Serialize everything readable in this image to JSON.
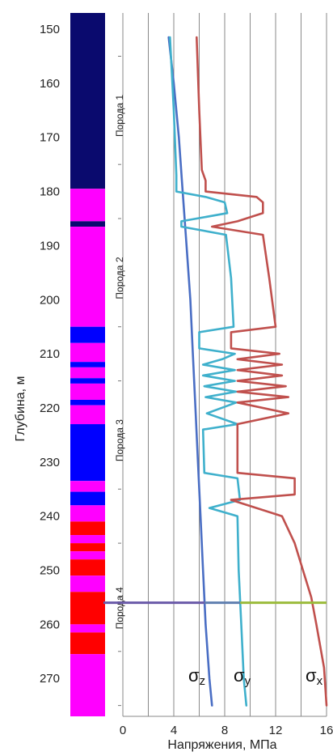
{
  "chart_data": {
    "type": "line",
    "title": "",
    "xlabel": "Напряжения, МПа",
    "ylabel": "Глубина, м",
    "xlim": [
      0,
      16
    ],
    "ylim": [
      147,
      277
    ],
    "x_ticks": [
      "0",
      "4",
      "8",
      "12",
      "16"
    ],
    "y_ticks": [
      "150",
      "160",
      "170",
      "180",
      "190",
      "200",
      "210",
      "220",
      "230",
      "240",
      "250",
      "260",
      "270"
    ],
    "zones": [
      {
        "label": "Порода 1",
        "center_depth": 166
      },
      {
        "label": "Порода 2",
        "center_depth": 196
      },
      {
        "label": "Порода 3",
        "center_depth": 226
      },
      {
        "label": "Порода 4",
        "center_depth": 257
      }
    ],
    "lithology_column": [
      {
        "from": 147,
        "to": 179.5,
        "color": "#0a0a6e"
      },
      {
        "from": 179.5,
        "to": 185.5,
        "color": "#ff00ff"
      },
      {
        "from": 185.5,
        "to": 186.5,
        "color": "#0a0a6e"
      },
      {
        "from": 186.5,
        "to": 205,
        "color": "#ff00ff"
      },
      {
        "from": 205,
        "to": 208,
        "color": "#0000ff"
      },
      {
        "from": 208,
        "to": 211.5,
        "color": "#ff00ff"
      },
      {
        "from": 211.5,
        "to": 212.5,
        "color": "#0000ff"
      },
      {
        "from": 212.5,
        "to": 214.5,
        "color": "#ff00ff"
      },
      {
        "from": 214.5,
        "to": 215.5,
        "color": "#0000ff"
      },
      {
        "from": 215.5,
        "to": 218.5,
        "color": "#ff00ff"
      },
      {
        "from": 218.5,
        "to": 219.5,
        "color": "#0000ff"
      },
      {
        "from": 219.5,
        "to": 223,
        "color": "#ff00ff"
      },
      {
        "from": 223,
        "to": 233.5,
        "color": "#0000ff"
      },
      {
        "from": 233.5,
        "to": 235.5,
        "color": "#ff00ff"
      },
      {
        "from": 235.5,
        "to": 238,
        "color": "#0000ff"
      },
      {
        "from": 238,
        "to": 241,
        "color": "#ff00ff"
      },
      {
        "from": 241,
        "to": 243.5,
        "color": "#ff0000"
      },
      {
        "from": 243.5,
        "to": 245,
        "color": "#ff00ff"
      },
      {
        "from": 245,
        "to": 246.5,
        "color": "#ff0000"
      },
      {
        "from": 246.5,
        "to": 248,
        "color": "#ff00ff"
      },
      {
        "from": 248,
        "to": 251,
        "color": "#ff0000"
      },
      {
        "from": 251,
        "to": 254,
        "color": "#ff00ff"
      },
      {
        "from": 254,
        "to": 260,
        "color": "#ff0000"
      },
      {
        "from": 260,
        "to": 261.5,
        "color": "#ff00ff"
      },
      {
        "from": 261.5,
        "to": 265.5,
        "color": "#ff0000"
      },
      {
        "from": 265.5,
        "to": 277,
        "color": "#ff00ff"
      }
    ],
    "series": [
      {
        "name": "σz",
        "color": "#4a6ec4",
        "points": [
          [
            3.6,
            151.5
          ],
          [
            4.0,
            160
          ],
          [
            4.4,
            170
          ],
          [
            4.7,
            180
          ],
          [
            5.0,
            190
          ],
          [
            5.3,
            200
          ],
          [
            5.5,
            210
          ],
          [
            5.7,
            220
          ],
          [
            5.9,
            230
          ],
          [
            6.1,
            240
          ],
          [
            6.3,
            250
          ],
          [
            6.5,
            260
          ],
          [
            6.8,
            270
          ],
          [
            7.0,
            275
          ]
        ]
      },
      {
        "name": "σy",
        "color": "#3fb0cc",
        "points": [
          [
            3.7,
            151.5
          ],
          [
            4.0,
            165
          ],
          [
            4.2,
            177
          ],
          [
            4.2,
            180
          ],
          [
            6.5,
            181
          ],
          [
            8.0,
            182
          ],
          [
            8.2,
            184
          ],
          [
            4.6,
            185.5
          ],
          [
            4.6,
            186.5
          ],
          [
            8.1,
            188
          ],
          [
            8.5,
            196
          ],
          [
            8.7,
            205
          ],
          [
            6.0,
            206
          ],
          [
            6.0,
            209
          ],
          [
            8.8,
            210
          ],
          [
            7.8,
            211
          ],
          [
            6.3,
            212
          ],
          [
            8.8,
            213
          ],
          [
            6.3,
            214
          ],
          [
            8.8,
            215
          ],
          [
            6.4,
            216
          ],
          [
            8.9,
            217
          ],
          [
            6.5,
            218
          ],
          [
            8.9,
            219
          ],
          [
            6.6,
            221
          ],
          [
            9.0,
            223
          ],
          [
            6.3,
            224
          ],
          [
            6.4,
            232
          ],
          [
            9.0,
            233
          ],
          [
            9.2,
            237
          ],
          [
            6.8,
            238.5
          ],
          [
            9.0,
            240
          ],
          [
            9.1,
            250
          ],
          [
            9.3,
            260
          ],
          [
            9.5,
            270
          ],
          [
            9.7,
            275
          ]
        ]
      },
      {
        "name": "σx",
        "color": "#c0504d",
        "points": [
          [
            5.8,
            151.5
          ],
          [
            6.0,
            165
          ],
          [
            6.2,
            176
          ],
          [
            6.5,
            178
          ],
          [
            6.5,
            180
          ],
          [
            10.5,
            181
          ],
          [
            11.0,
            182
          ],
          [
            11.0,
            184
          ],
          [
            9.0,
            185.5
          ],
          [
            7.0,
            186.5
          ],
          [
            11.0,
            188
          ],
          [
            11.5,
            196
          ],
          [
            12.0,
            205
          ],
          [
            8.5,
            206
          ],
          [
            8.5,
            209
          ],
          [
            12.3,
            210
          ],
          [
            9.0,
            211
          ],
          [
            12.5,
            212
          ],
          [
            9.0,
            213
          ],
          [
            12.5,
            214
          ],
          [
            9.0,
            215
          ],
          [
            12.8,
            216
          ],
          [
            9.0,
            217
          ],
          [
            13.0,
            218
          ],
          [
            9.0,
            219
          ],
          [
            13.0,
            221
          ],
          [
            9.0,
            223
          ],
          [
            9.0,
            232
          ],
          [
            13.5,
            233
          ],
          [
            13.5,
            236
          ],
          [
            8.5,
            237
          ],
          [
            12.5,
            240
          ],
          [
            13.5,
            245
          ],
          [
            14.8,
            255
          ],
          [
            15.2,
            260
          ],
          [
            15.8,
            268
          ],
          [
            16.0,
            275
          ]
        ]
      }
    ],
    "horizontal_marker": {
      "depth": 256,
      "x_to": 16
    }
  }
}
